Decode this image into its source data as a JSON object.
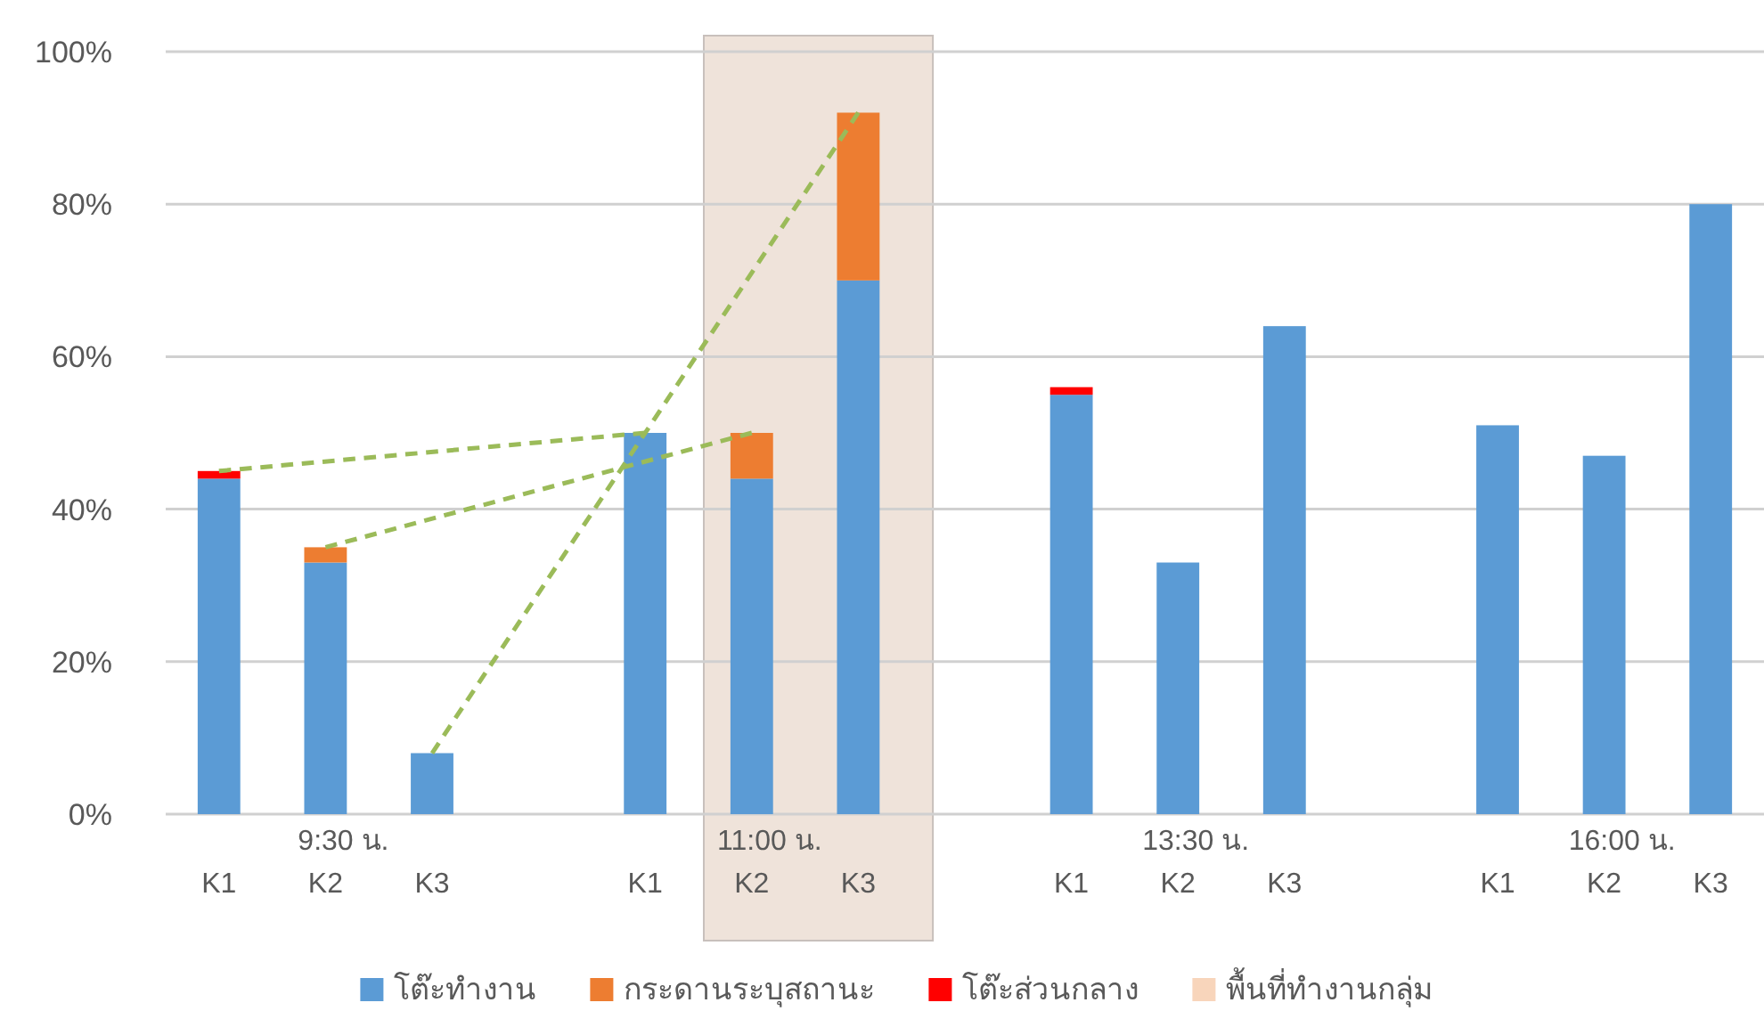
{
  "chart_data": {
    "type": "bar",
    "stacked": true,
    "categories": [
      "K1",
      "K2",
      "K3",
      null,
      "K1",
      "K2",
      "K3",
      null,
      "K1",
      "K2",
      "K3",
      null,
      "K1",
      "K2",
      "K3"
    ],
    "series": [
      {
        "name": "โต๊ะทำงาน",
        "color": "#5b9bd5",
        "values": [
          44,
          33,
          8,
          null,
          50,
          44,
          70,
          null,
          55,
          33,
          64,
          null,
          51,
          47,
          80
        ]
      },
      {
        "name": "กระดานระบุสถานะ",
        "color": "#ed7d31",
        "values": [
          null,
          2,
          null,
          null,
          null,
          6,
          22,
          null,
          null,
          null,
          null,
          null,
          null,
          null,
          null
        ]
      },
      {
        "name": "โต๊ะส่วนกลาง",
        "color": "#ff0000",
        "values": [
          1,
          null,
          null,
          null,
          null,
          null,
          null,
          null,
          1,
          null,
          null,
          null,
          null,
          null,
          null
        ]
      },
      {
        "name": "พื้นที่ทำงานกลุ่ม",
        "color": "#f8d5bb",
        "values": [
          null,
          null,
          null,
          null,
          null,
          null,
          null,
          null,
          null,
          null,
          null,
          null,
          null,
          null,
          null
        ]
      },
      {
        "type": "line",
        "color": "#9bbb59",
        "line_style": "dashed",
        "values": [
          45,
          null,
          null,
          null,
          50,
          null,
          null,
          null,
          null,
          null,
          null,
          null,
          null,
          null,
          null
        ]
      },
      {
        "type": "line",
        "color": "#9bbb59",
        "line_style": "dashed",
        "values": [
          null,
          35,
          null,
          null,
          null,
          50,
          null,
          null,
          null,
          null,
          null,
          null,
          null,
          null,
          null
        ]
      },
      {
        "type": "line",
        "color": "#9bbb59",
        "line_style": "dashed",
        "values": [
          null,
          null,
          8,
          null,
          null,
          null,
          92,
          null,
          null,
          null,
          null,
          null,
          null,
          null,
          null
        ]
      }
    ],
    "ylim": [
      0,
      100
    ],
    "yticks": [
      {
        "value": 0,
        "label": "0%"
      },
      {
        "value": 20,
        "label": "20%"
      },
      {
        "value": 40,
        "label": "40%"
      },
      {
        "value": 60,
        "label": "60%"
      },
      {
        "value": 80,
        "label": "80%"
      },
      {
        "value": 100,
        "label": "100%"
      }
    ],
    "grid": "y",
    "legend": "bottom",
    "annotations": [
      "9:30 น.",
      "11:00 น.",
      "13:30 น.",
      "16:00 น."
    ]
  }
}
